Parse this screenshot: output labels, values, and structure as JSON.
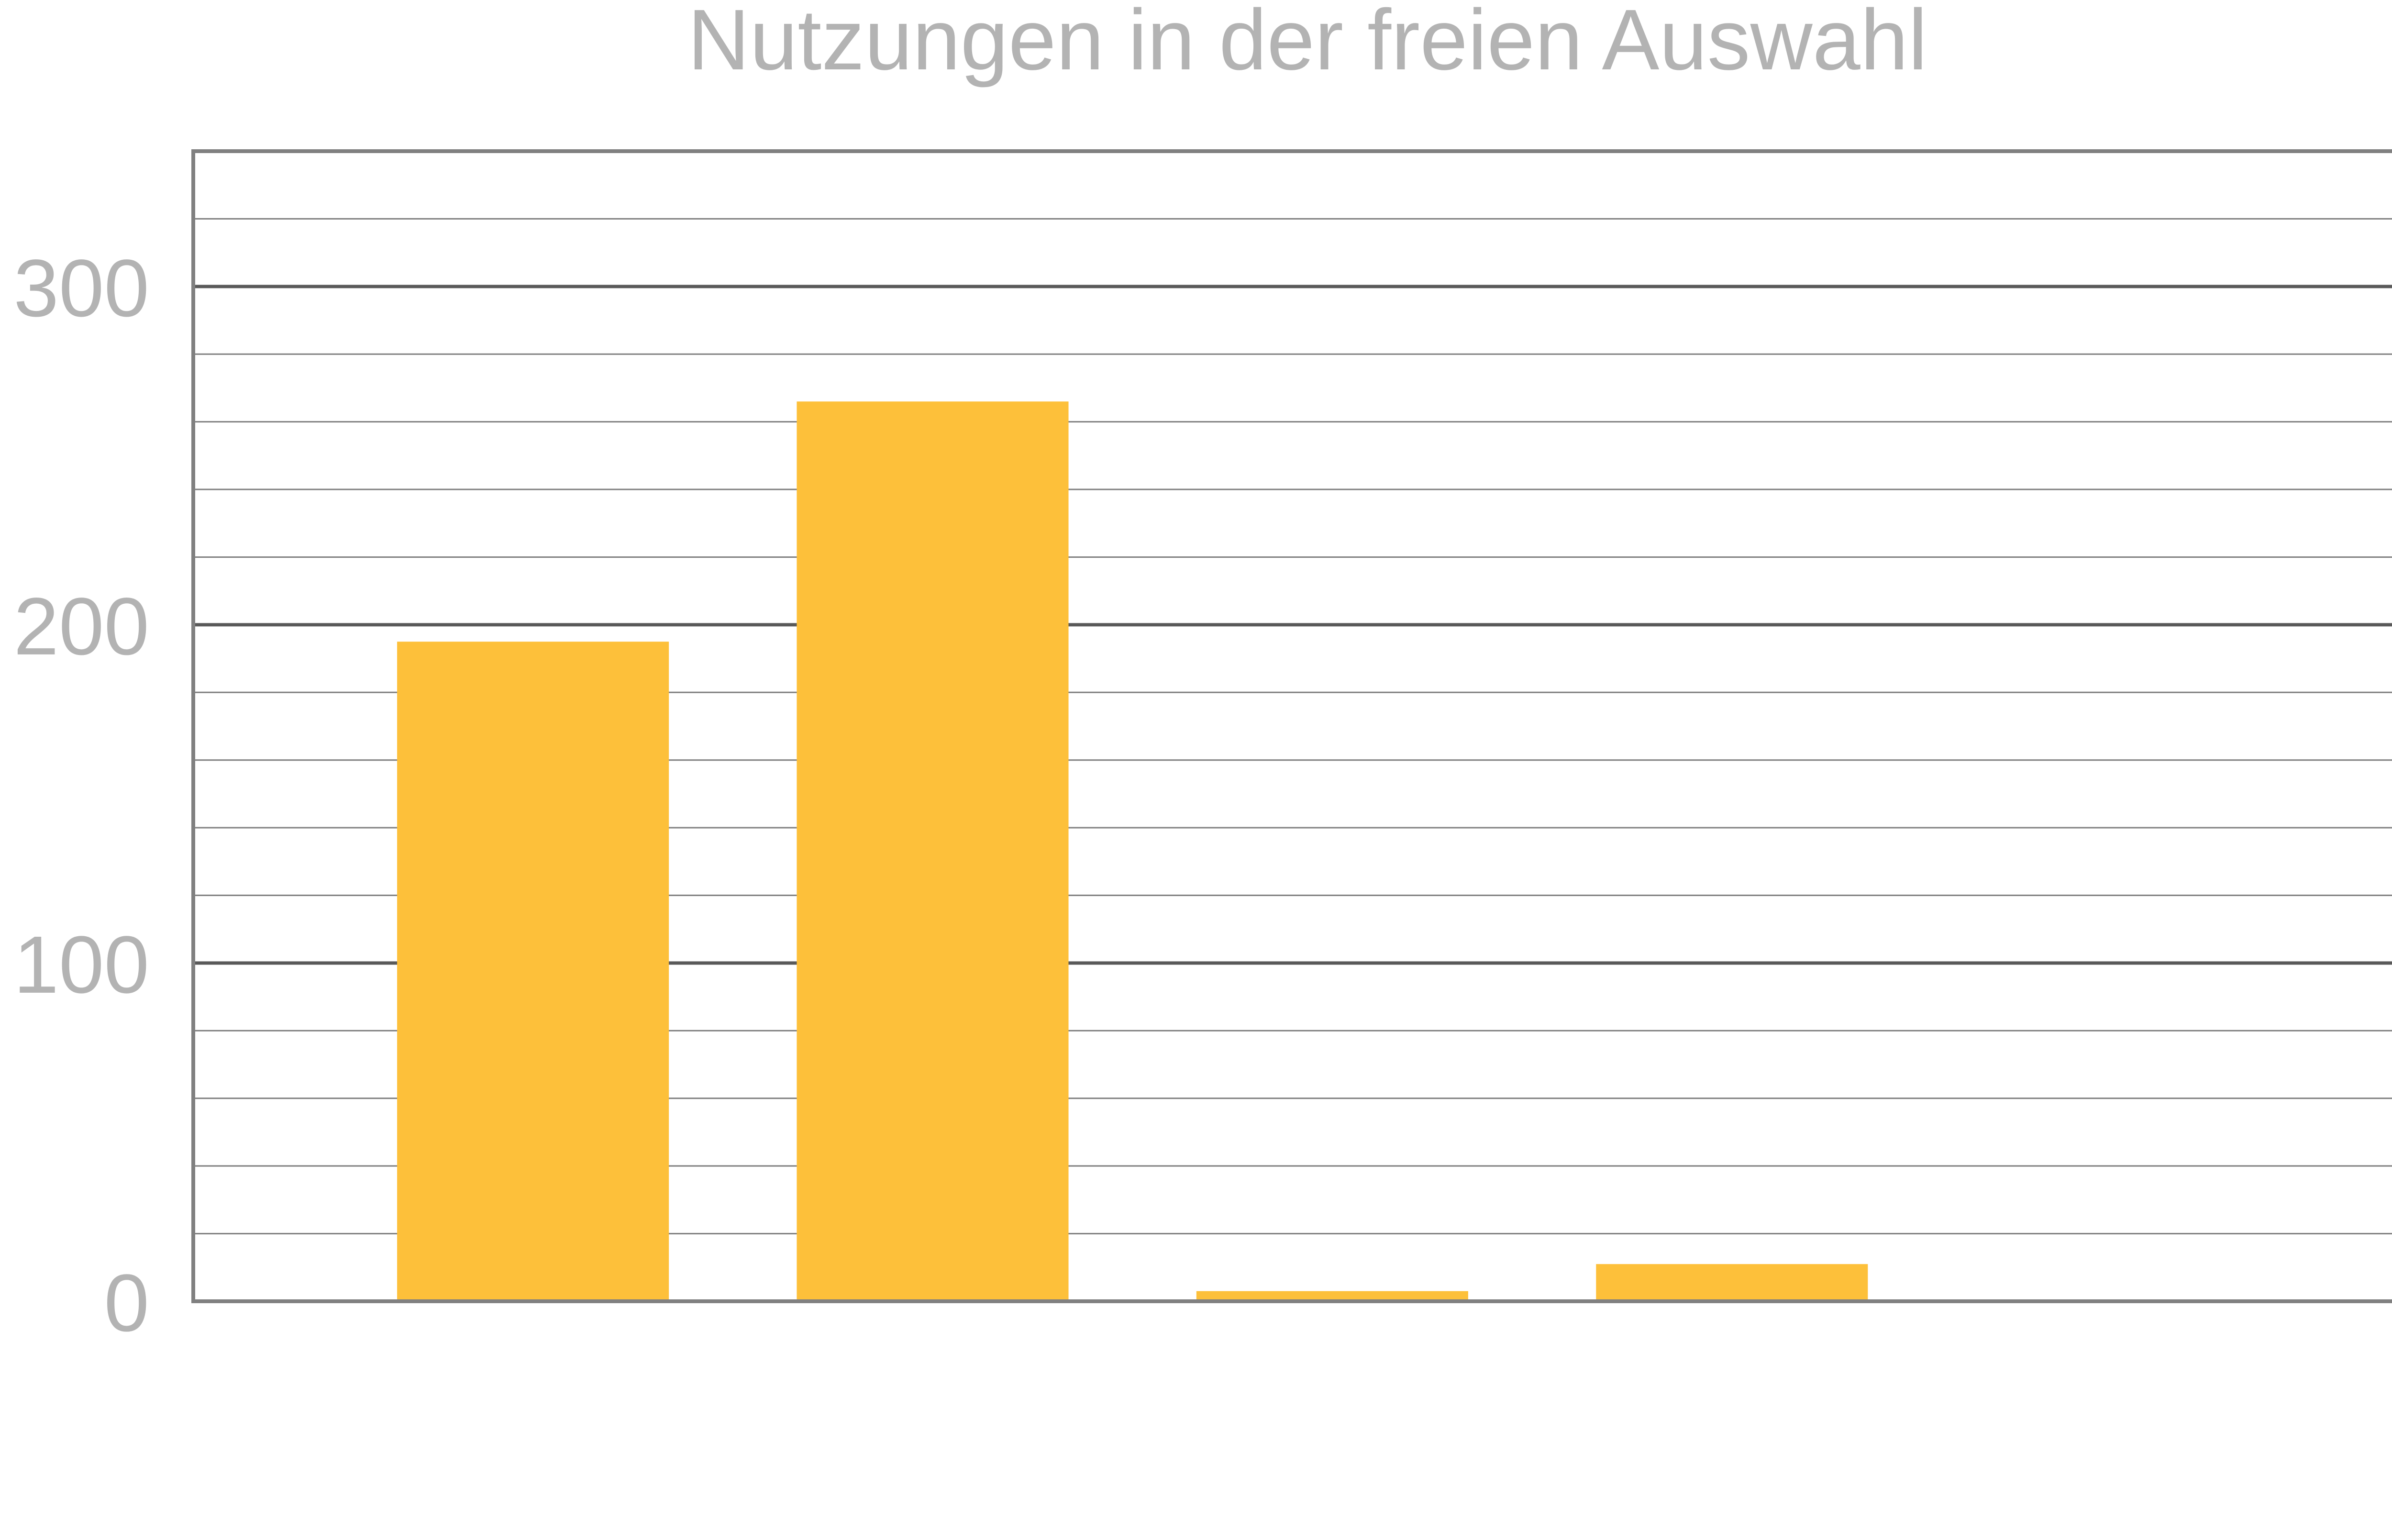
{
  "chart_data": {
    "type": "bar",
    "title": "Nutzungen in der freien Auswahl",
    "xlabel": "",
    "ylabel": "",
    "categories": [
      "",
      "",
      "",
      "",
      ""
    ],
    "values": [
      195,
      266,
      3,
      11,
      0
    ],
    "ylim": [
      0,
      340
    ],
    "y_ticks": [
      0,
      100,
      200,
      300
    ],
    "y_tick_labels": [
      "0",
      "100",
      "200",
      "300"
    ],
    "minor_grid_step": 20,
    "grid": true,
    "legend": "none",
    "colors": {
      "bar": "#fdc03a",
      "title": "#b3b3b3",
      "tick_label": "#b3b3b3",
      "major_grid": "#595959",
      "minor_grid": "#7f7f7f",
      "frame": "#808080"
    }
  }
}
